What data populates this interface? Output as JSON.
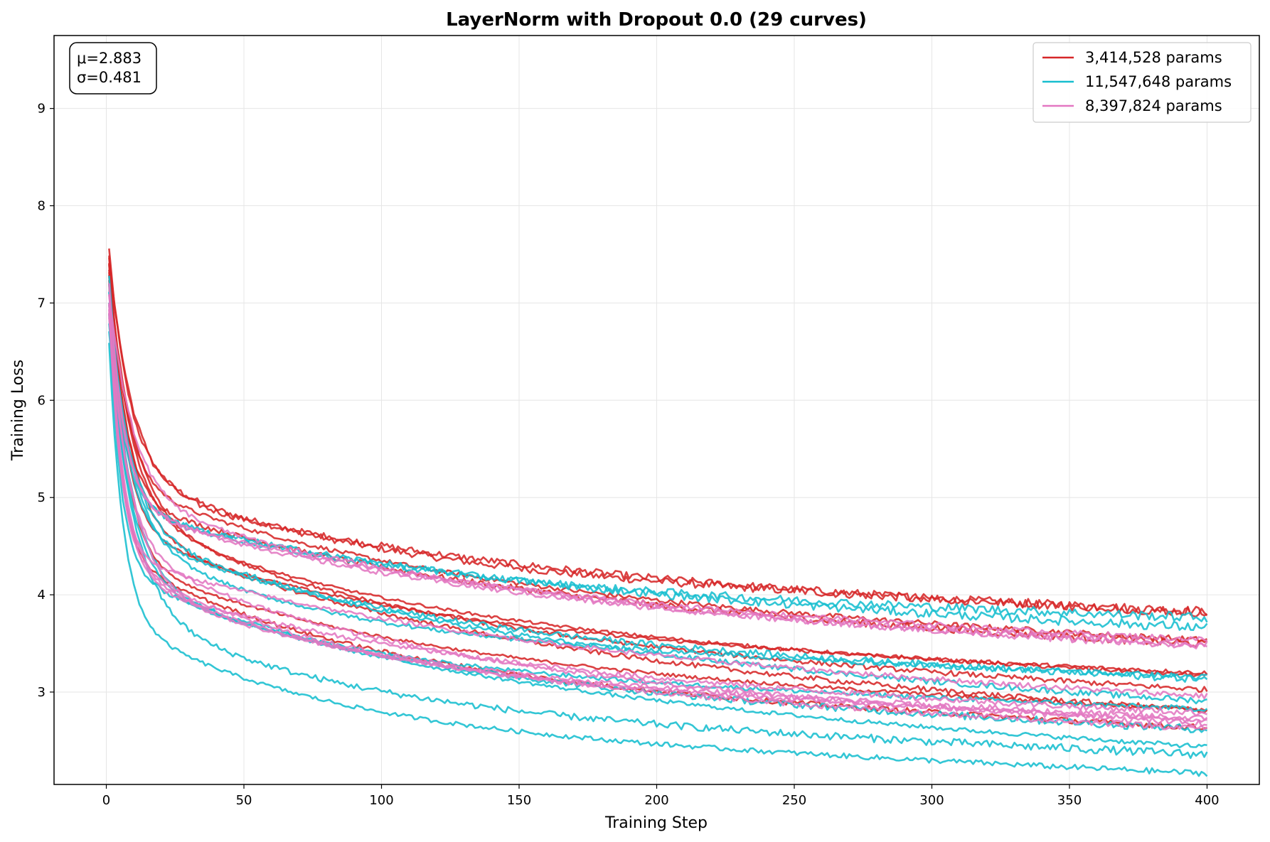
{
  "chart_data": {
    "type": "line",
    "title": "LayerNorm with Dropout 0.0 (29 curves)",
    "xlabel": "Training Step",
    "ylabel": "Training Loss",
    "xlim": [
      -19,
      419
    ],
    "ylim": [
      2.05,
      9.75
    ],
    "xticks": [
      0,
      50,
      100,
      150,
      200,
      250,
      300,
      350,
      400
    ],
    "yticks": [
      3,
      4,
      5,
      6,
      7,
      8,
      9
    ],
    "grid": true,
    "legend_position": "top-right",
    "legend": [
      {
        "label": "3,414,528 params",
        "color": "#d62728"
      },
      {
        "label": "11,547,648 params",
        "color": "#17becf"
      },
      {
        "label": "8,397,824 params",
        "color": "#e377c2"
      }
    ],
    "stats": {
      "mu": "μ=2.883",
      "sigma": "σ=0.481"
    },
    "x_range": [
      1,
      400
    ],
    "series": [
      {
        "color": "#d62728",
        "start": 7.55,
        "end": 3.82
      },
      {
        "color": "#d62728",
        "start": 7.5,
        "end": 3.78
      },
      {
        "color": "#d62728",
        "start": 7.45,
        "end": 3.5
      },
      {
        "color": "#d62728",
        "start": 7.4,
        "end": 3.45
      },
      {
        "color": "#d62728",
        "start": 7.4,
        "end": 3.18
      },
      {
        "color": "#d62728",
        "start": 7.35,
        "end": 3.15
      },
      {
        "color": "#d62728",
        "start": 7.3,
        "end": 3.0
      },
      {
        "color": "#d62728",
        "start": 7.3,
        "end": 2.8
      },
      {
        "color": "#d62728",
        "start": 7.25,
        "end": 2.75
      },
      {
        "color": "#d62728",
        "start": 7.2,
        "end": 2.62
      },
      {
        "color": "#17becf",
        "start": 7.3,
        "end": 3.75
      },
      {
        "color": "#17becf",
        "start": 7.2,
        "end": 3.62
      },
      {
        "color": "#17becf",
        "start": 7.1,
        "end": 3.15
      },
      {
        "color": "#17becf",
        "start": 7.1,
        "end": 3.12
      },
      {
        "color": "#17becf",
        "start": 7.0,
        "end": 2.85
      },
      {
        "color": "#17becf",
        "start": 7.0,
        "end": 2.82
      },
      {
        "color": "#17becf",
        "start": 6.9,
        "end": 2.6
      },
      {
        "color": "#17becf",
        "start": 6.8,
        "end": 2.38
      },
      {
        "color": "#17becf",
        "start": 6.7,
        "end": 2.35
      },
      {
        "color": "#17becf",
        "start": 6.6,
        "end": 2.16
      },
      {
        "color": "#e377c2",
        "start": 7.2,
        "end": 3.5
      },
      {
        "color": "#e377c2",
        "start": 7.1,
        "end": 3.45
      },
      {
        "color": "#e377c2",
        "start": 7.1,
        "end": 3.42
      },
      {
        "color": "#e377c2",
        "start": 7.0,
        "end": 2.9
      },
      {
        "color": "#e377c2",
        "start": 7.0,
        "end": 2.75
      },
      {
        "color": "#e377c2",
        "start": 6.95,
        "end": 2.72
      },
      {
        "color": "#e377c2",
        "start": 6.9,
        "end": 2.7
      },
      {
        "color": "#e377c2",
        "start": 6.9,
        "end": 2.65
      },
      {
        "color": "#e377c2",
        "start": 6.85,
        "end": 2.6
      }
    ]
  }
}
